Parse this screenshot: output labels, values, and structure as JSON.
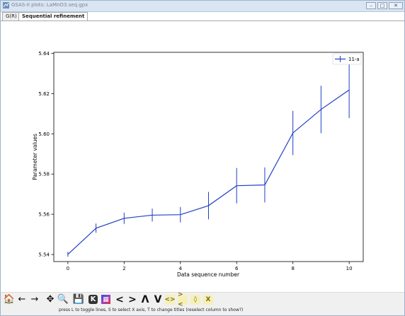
{
  "window": {
    "title": "GSAS-II plots: LaMnO3.seq.gpx",
    "controls": {
      "minimize": "–",
      "maximize": "□",
      "close": "✕"
    }
  },
  "tabs": [
    {
      "label": "G(R)",
      "active": false
    },
    {
      "label": "Sequential refinement",
      "active": true
    }
  ],
  "chart_data": {
    "type": "line",
    "xlabel": "Data sequence number",
    "ylabel": "Parameter values",
    "xlim": [
      -0.5,
      10.5
    ],
    "ylim": [
      5.5365,
      5.6405
    ],
    "xticks": [
      0,
      2,
      4,
      6,
      8,
      10
    ],
    "yticks": [
      5.54,
      5.56,
      5.58,
      5.6,
      5.62,
      5.64
    ],
    "ytick_labels": [
      "5.54",
      "5.56",
      "5.58",
      "5.60",
      "5.62",
      "5.64"
    ],
    "legend_position": "top-right",
    "grid": false,
    "series": [
      {
        "name": "11-a",
        "color": "#1f3fc4",
        "x": [
          0,
          1,
          2,
          3,
          4,
          5,
          6,
          7,
          8,
          9,
          10
        ],
        "y": [
          5.5401,
          5.5531,
          5.558,
          5.5596,
          5.5598,
          5.5643,
          5.5742,
          5.5746,
          5.6004,
          5.6121,
          5.6218
        ],
        "yerr": [
          0.0012,
          0.0023,
          0.0028,
          0.0032,
          0.0038,
          0.0068,
          0.0088,
          0.0087,
          0.011,
          0.0118,
          0.014
        ]
      }
    ]
  },
  "toolbar": {
    "buttons": [
      {
        "name": "home-icon",
        "label": "🏠"
      },
      {
        "name": "back-arrow-icon",
        "label": "←"
      },
      {
        "name": "forward-arrow-icon",
        "label": "→"
      },
      {
        "name": "pan-icon",
        "label": "✥"
      },
      {
        "name": "zoom-icon",
        "label": "🔍"
      },
      {
        "name": "save-icon",
        "label": "💾"
      },
      {
        "name": "key-icon",
        "label": "K"
      },
      {
        "name": "palette-icon",
        "label": "▦"
      },
      {
        "name": "shift-left-icon",
        "label": "<"
      },
      {
        "name": "shift-right-icon",
        "label": ">"
      },
      {
        "name": "shift-up-icon",
        "label": "Λ"
      },
      {
        "name": "shift-down-icon",
        "label": "V"
      },
      {
        "name": "expand-x-icon",
        "label": "<>"
      },
      {
        "name": "shrink-x-icon",
        "label": "><"
      },
      {
        "name": "expand-y-icon",
        "label": "◊"
      },
      {
        "name": "shrink-y-icon",
        "label": "X"
      }
    ]
  },
  "status": {
    "text": "press L to toggle lines, S to select X axis, T to change titles (reselect column to show?)"
  }
}
